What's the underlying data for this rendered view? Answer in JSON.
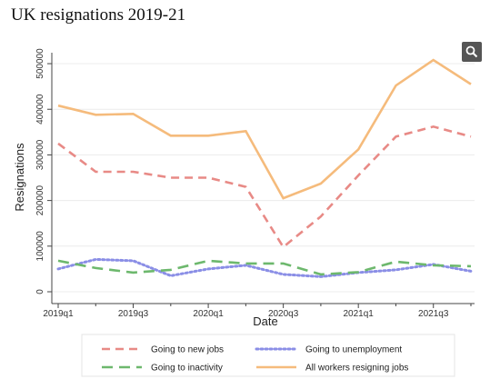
{
  "page": {
    "title": "UK resignations 2019-21"
  },
  "toolbar": {
    "zoom_icon": "magnifier-icon"
  },
  "chart_data": {
    "type": "line",
    "xlabel": "Date",
    "ylabel": "Resignations",
    "x": [
      "2019q1",
      "2019q2",
      "2019q3",
      "2019q4",
      "2020q1",
      "2020q2",
      "2020q3",
      "2020q4",
      "2021q1",
      "2021q2",
      "2021q3",
      "2021q4"
    ],
    "x_tick_labels": [
      "2019q1",
      "2019q3",
      "2020q1",
      "2020q3",
      "2021q1",
      "2021q3"
    ],
    "y_ticks": [
      0,
      100000,
      200000,
      300000,
      400000,
      500000
    ],
    "y_tick_labels": [
      "0",
      "100000",
      "200000",
      "300000",
      "400000",
      "500000"
    ],
    "ylim": [
      0,
      520000
    ],
    "grid": true,
    "legend_position": "bottom",
    "series": [
      {
        "name": "Going to new jobs",
        "color": "#e88a86",
        "style": "dash",
        "values": [
          325000,
          263000,
          263000,
          250000,
          250000,
          230000,
          98000,
          165000,
          255000,
          340000,
          362000,
          340000
        ]
      },
      {
        "name": "Going to unemployment",
        "color": "#8a8ee6",
        "style": "dot",
        "values": [
          50000,
          71000,
          68000,
          35000,
          50000,
          58000,
          38000,
          33000,
          42000,
          48000,
          60000,
          45000
        ]
      },
      {
        "name": "Going to inactivity",
        "color": "#6db86d",
        "style": "longdash",
        "values": [
          68000,
          52000,
          42000,
          48000,
          68000,
          62000,
          62000,
          38000,
          43000,
          66000,
          58000,
          56000
        ]
      },
      {
        "name": "All workers resigning jobs",
        "color": "#f5bb7c",
        "style": "solid",
        "values": [
          408000,
          388000,
          390000,
          342000,
          342000,
          352000,
          205000,
          237000,
          312000,
          452000,
          508000,
          455000
        ]
      }
    ]
  }
}
